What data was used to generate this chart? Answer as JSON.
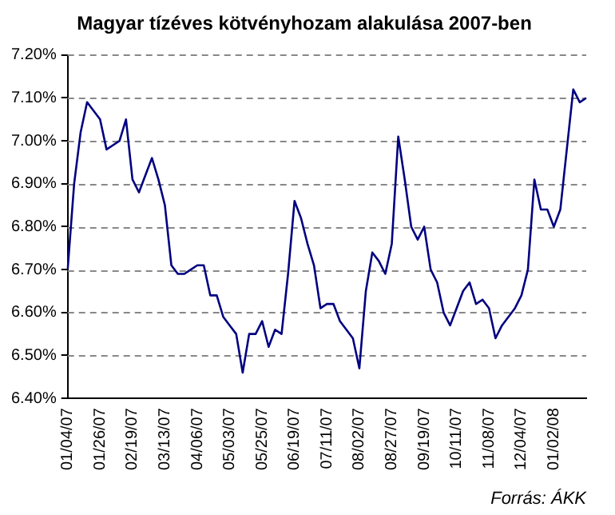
{
  "chart_data": {
    "type": "line",
    "title": "Magyar tízéves kötvényhozam alakulása 2007-ben",
    "categories": [
      "01/04/07",
      null,
      null,
      null,
      null,
      "01/26/07",
      null,
      null,
      null,
      null,
      "02/19/07",
      null,
      null,
      null,
      null,
      "03/13/07",
      null,
      null,
      null,
      null,
      "04/06/07",
      null,
      null,
      null,
      null,
      "05/03/07",
      null,
      null,
      null,
      null,
      "05/25/07",
      null,
      null,
      null,
      null,
      "06/19/07",
      null,
      null,
      null,
      null,
      "07/11/07",
      null,
      null,
      null,
      null,
      "08/02/07",
      null,
      null,
      null,
      null,
      "08/27/07",
      null,
      null,
      null,
      null,
      "09/19/07",
      null,
      null,
      null,
      null,
      "10/11/07",
      null,
      null,
      null,
      null,
      "11/08/07",
      null,
      null,
      null,
      null,
      "12/04/07",
      null,
      null,
      null,
      null,
      "01/02/08",
      null,
      null,
      null,
      null,
      null
    ],
    "series": [
      {
        "color": "#000080",
        "values": [
          6.7,
          6.9,
          7.02,
          7.09,
          7.07,
          7.05,
          6.98,
          6.99,
          7.0,
          7.05,
          6.91,
          6.88,
          6.92,
          6.96,
          6.91,
          6.85,
          6.71,
          6.69,
          6.69,
          6.7,
          6.71,
          6.71,
          6.64,
          6.64,
          6.59,
          6.57,
          6.55,
          6.46,
          6.55,
          6.55,
          6.58,
          6.52,
          6.56,
          6.55,
          6.69,
          6.86,
          6.82,
          6.76,
          6.71,
          6.61,
          6.62,
          6.62,
          6.58,
          6.56,
          6.54,
          6.47,
          6.65,
          6.74,
          6.72,
          6.69,
          6.76,
          7.01,
          6.91,
          6.8,
          6.77,
          6.8,
          6.7,
          6.67,
          6.6,
          6.57,
          6.61,
          6.65,
          6.67,
          6.62,
          6.63,
          6.61,
          6.54,
          6.57,
          6.59,
          6.61,
          6.64,
          6.7,
          6.91,
          6.84,
          6.84,
          6.8,
          6.84,
          6.98,
          7.12,
          7.09,
          7.1
        ]
      }
    ],
    "ylim": [
      6.4,
      7.2
    ],
    "yticks": [
      {
        "value": 6.4,
        "label": "6.40%"
      },
      {
        "value": 6.5,
        "label": "6.50%"
      },
      {
        "value": 6.6,
        "label": "6.60%"
      },
      {
        "value": 6.7,
        "label": "6.70%"
      },
      {
        "value": 6.8,
        "label": "6.80%"
      },
      {
        "value": 6.9,
        "label": "6.90%"
      },
      {
        "value": 7.0,
        "label": "7.00%"
      },
      {
        "value": 7.1,
        "label": "7.10%"
      },
      {
        "value": 7.2,
        "label": "7.20%"
      }
    ],
    "grid": "y",
    "line_style": "solid",
    "marker": "none",
    "legend": false,
    "annotations": [
      "Forrás: ÁKK"
    ]
  }
}
